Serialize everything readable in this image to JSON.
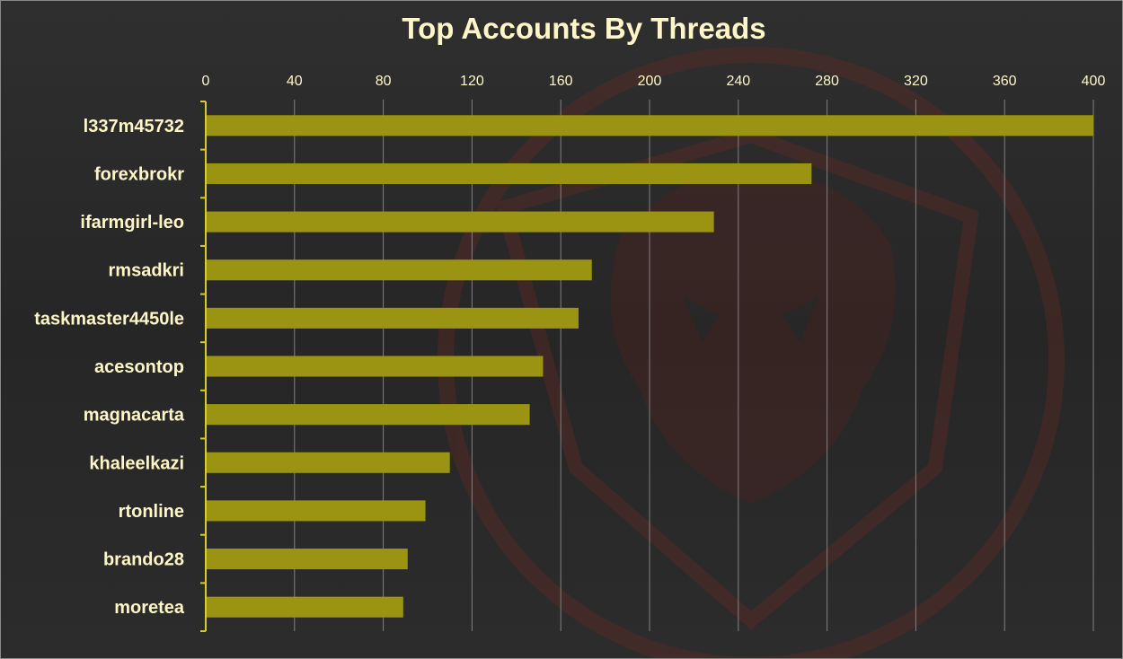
{
  "chart_data": {
    "type": "bar",
    "orientation": "horizontal",
    "title": "Top Accounts By Threads",
    "categories": [
      "l337m45732",
      "forexbrokr",
      "ifarmgirl-leo",
      "rmsadkri",
      "taskmaster4450le",
      "acesontop",
      "magnacarta",
      "khaleelkazi",
      "rtonline",
      "brando28",
      "moretea"
    ],
    "values": [
      400,
      273,
      229,
      174,
      168,
      152,
      146,
      110,
      99,
      91,
      89
    ],
    "xlim": [
      0,
      400
    ],
    "xticks": [
      0,
      40,
      80,
      120,
      160,
      200,
      240,
      280,
      320,
      360,
      400
    ],
    "x_axis_position": "top",
    "grid": true,
    "legend": "none"
  },
  "colors": {
    "bar": "#9a9412",
    "text": "#fff6c8",
    "axis": "#d8cc2a",
    "grid": "#9e9e9e",
    "watermark": "#7a2a22"
  }
}
